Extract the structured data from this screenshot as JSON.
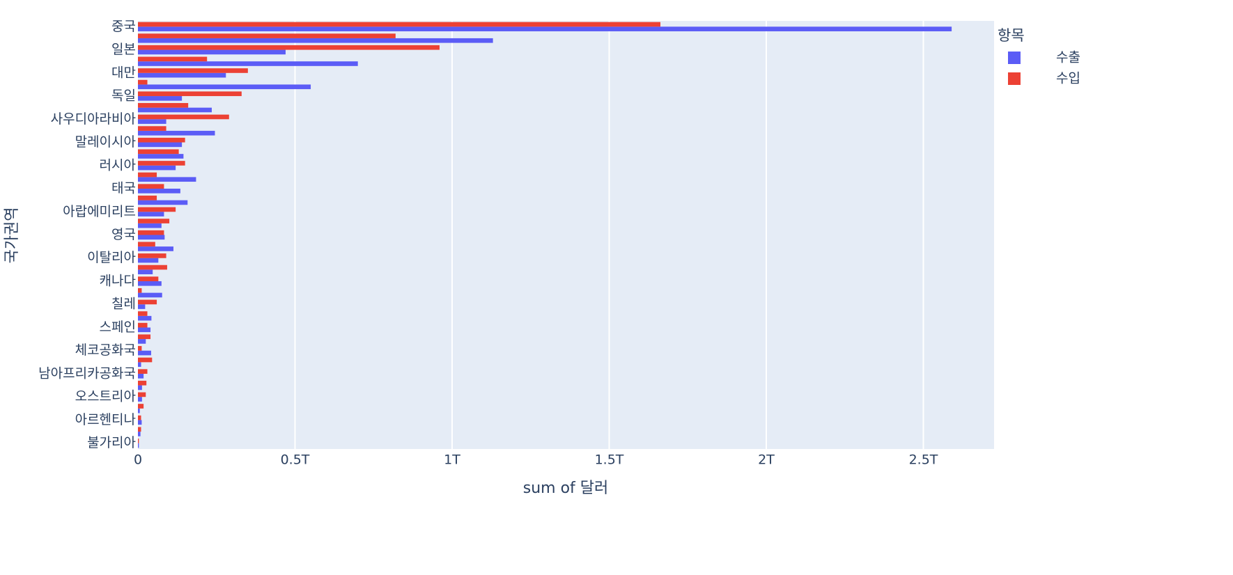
{
  "chart_data": {
    "type": "hbar",
    "x_label": "sum of 달러",
    "y_label": "국가권역",
    "legend_title": "항목",
    "legend_position": "top-right",
    "categories": [
      "중국",
      null,
      "일본",
      null,
      "대만",
      null,
      "독일",
      null,
      "사우디아라비아",
      null,
      "말레이시아",
      null,
      "러시아",
      null,
      "태국",
      null,
      "아랍에미리트",
      null,
      "영국",
      null,
      "이탈리아",
      null,
      "캐나다",
      null,
      "칠레",
      null,
      "스페인",
      null,
      "체코공화국",
      null,
      "남아프리카공화국",
      null,
      "오스트리아",
      null,
      "아르헨티나",
      null,
      "불가리아"
    ],
    "series": [
      {
        "name": "수출",
        "color": "#5b5cf6",
        "values": [
          2590000000000.0,
          1130000000000.0,
          470000000000.0,
          700000000000.0,
          280000000000.0,
          550000000000.0,
          140000000000.0,
          235000000000.0,
          90000000000.0,
          245000000000.0,
          140000000000.0,
          145000000000.0,
          120000000000.0,
          185000000000.0,
          135000000000.0,
          158000000000.0,
          83000000000.0,
          75000000000.0,
          85000000000.0,
          113000000000.0,
          65000000000.0,
          47000000000.0,
          75000000000.0,
          77000000000.0,
          23000000000.0,
          43000000000.0,
          40000000000.0,
          25000000000.0,
          42000000000.0,
          10000000000.0,
          18000000000.0,
          13000000000.0,
          13000000000.0,
          6000000000.0,
          12000000000.0,
          8000000000.0,
          3000000000.0
        ]
      },
      {
        "name": "수입",
        "color": "#ec4134",
        "values": [
          1663000000000.0,
          820000000000.0,
          960000000000.0,
          220000000000.0,
          350000000000.0,
          30000000000.0,
          330000000000.0,
          160000000000.0,
          290000000000.0,
          90000000000.0,
          150000000000.0,
          130000000000.0,
          150000000000.0,
          60000000000.0,
          83000000000.0,
          60000000000.0,
          120000000000.0,
          100000000000.0,
          83000000000.0,
          55000000000.0,
          90000000000.0,
          93000000000.0,
          65000000000.0,
          12000000000.0,
          60000000000.0,
          30000000000.0,
          30000000000.0,
          40000000000.0,
          12000000000.0,
          45000000000.0,
          30000000000.0,
          27000000000.0,
          25000000000.0,
          18000000000.0,
          10000000000.0,
          10000000000.0,
          3000000000.0
        ]
      }
    ],
    "xlim": [
      0,
      2725000000000.0
    ],
    "xticks": [
      0,
      {
        "value": 500000000000.0,
        "label": "0.5T"
      },
      {
        "value": 1000000000000.0,
        "label": "1T"
      },
      {
        "value": 1500000000000.0,
        "label": "1.5T"
      },
      {
        "value": 2000000000000.0,
        "label": "2T"
      },
      {
        "value": 2500000000000.0,
        "label": "2.5T"
      }
    ],
    "grid": true
  }
}
